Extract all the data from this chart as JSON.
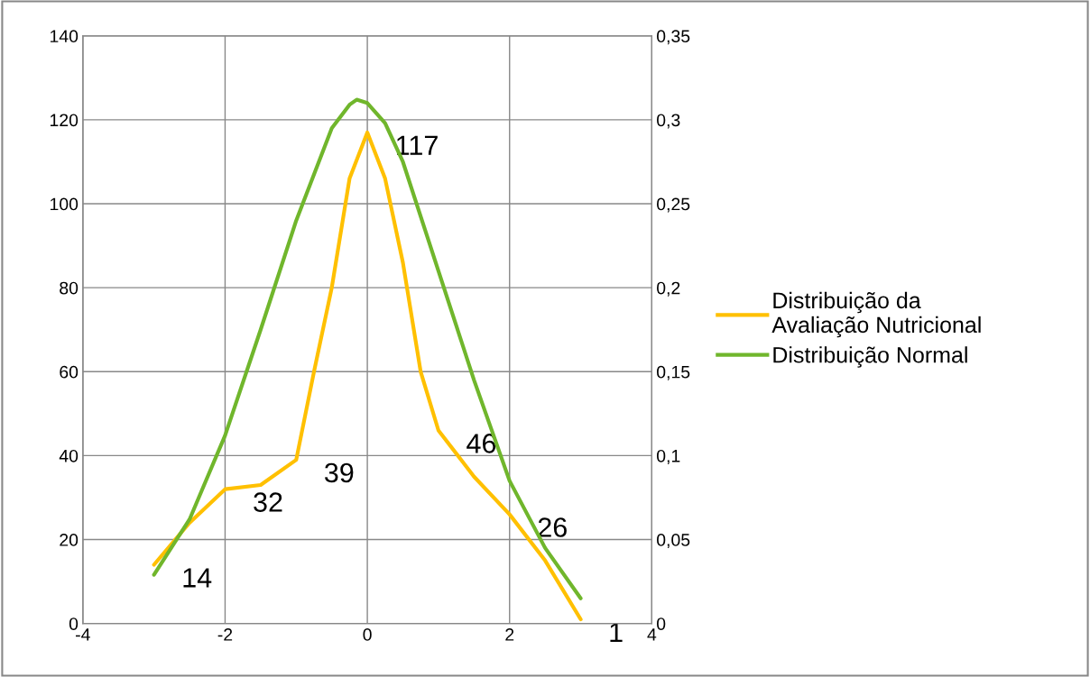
{
  "chart_data": {
    "type": "line",
    "xlim": [
      -4,
      4
    ],
    "xticks": [
      -4,
      -2,
      0,
      2,
      4
    ],
    "ylim": [
      0,
      140
    ],
    "yticks": [
      0,
      20,
      40,
      60,
      80,
      100,
      120,
      140
    ],
    "y2lim": [
      0,
      0.35
    ],
    "y2ticks": [
      0,
      {
        "value": 0.05,
        "label": "0,05"
      },
      {
        "value": 0.1,
        "label": "0,1"
      },
      {
        "value": 0.15,
        "label": "0,15"
      },
      {
        "value": 0.2,
        "label": "0,2"
      },
      {
        "value": 0.25,
        "label": "0,25"
      },
      {
        "value": 0.3,
        "label": "0,3"
      },
      {
        "value": 0.35,
        "label": "0,35"
      }
    ],
    "grid": true,
    "legend": "right",
    "marker": "none",
    "line_style": "solid",
    "series": [
      {
        "name": "Distribuição da\nAvaliação Nutricional",
        "color": "#ffc000",
        "x": [
          -3,
          -2.5,
          -2,
          -1.5,
          -1,
          -0.75,
          -0.5,
          -0.25,
          0,
          0.25,
          0.5,
          0.75,
          1,
          1.5,
          2,
          2.5,
          3
        ],
        "values": [
          14,
          24,
          32,
          33,
          39,
          60,
          80,
          106,
          117,
          106,
          86,
          60,
          46,
          35,
          26,
          15,
          1
        ],
        "value_labels": [
          "14",
          null,
          "32",
          null,
          "39",
          null,
          null,
          null,
          "117",
          null,
          null,
          null,
          "46",
          null,
          "26",
          null,
          "1"
        ]
      },
      {
        "name": "Distribuição Normal",
        "color": "#70b62c",
        "axis": "y2",
        "x": [
          -3,
          -2.5,
          -2,
          -1.5,
          -1,
          -0.5,
          -0.25,
          -0.15,
          0,
          0.25,
          0.5,
          1,
          1.5,
          2,
          2.5,
          3
        ],
        "values": [
          0.029,
          0.062,
          0.112,
          0.175,
          0.24,
          0.295,
          0.309,
          0.312,
          0.31,
          0.298,
          0.275,
          0.21,
          0.145,
          0.085,
          0.045,
          0.015
        ]
      }
    ]
  }
}
